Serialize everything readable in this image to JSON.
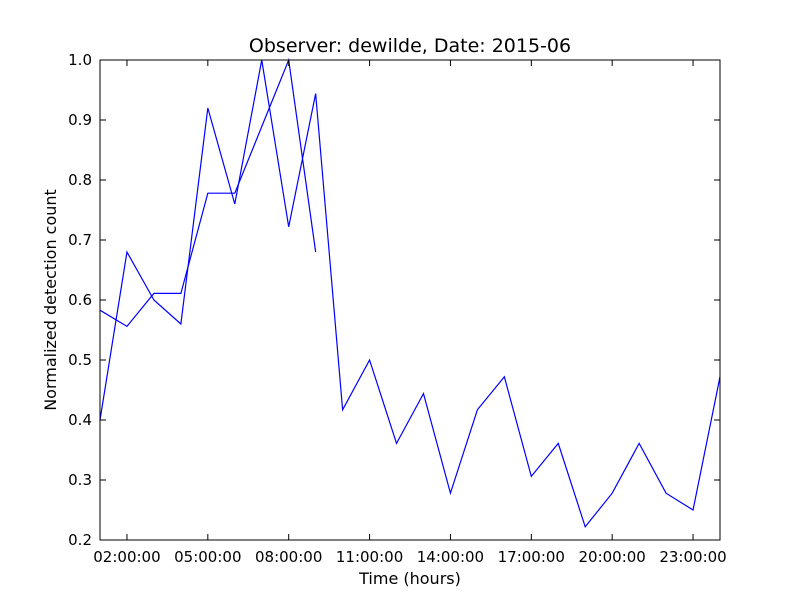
{
  "chart_data": {
    "type": "line",
    "title": "Observer: dewilde, Date: 2015-06",
    "xlabel": "Time (hours)",
    "ylabel": "Normalized detection count",
    "xlim": [
      "01:00:00",
      "24:00:00"
    ],
    "ylim": [
      0.2,
      1.0
    ],
    "x_tick_labels": [
      "02:00:00",
      "05:00:00",
      "08:00:00",
      "11:00:00",
      "14:00:00",
      "17:00:00",
      "20:00:00",
      "23:00:00"
    ],
    "y_tick_labels": [
      "0.2",
      "0.3",
      "0.4",
      "0.5",
      "0.6",
      "0.7",
      "0.8",
      "0.9",
      "1.0"
    ],
    "grid": false,
    "legend": "none",
    "color": "#0000ff",
    "series": [
      {
        "x": [
          "01:00:00",
          "02:00:00",
          "03:00:00",
          "04:00:00",
          "05:00:00",
          "06:00:00",
          "07:00:00",
          "08:00:00",
          "09:00:00"
        ],
        "y": [
          0.583,
          0.556,
          0.611,
          0.611,
          0.778,
          0.778,
          0.889,
          1.0,
          0.68
        ]
      },
      {
        "x": [
          "01:00:00",
          "02:00:00",
          "03:00:00",
          "04:00:00",
          "05:00:00",
          "06:00:00",
          "07:00:00",
          "08:00:00",
          "09:00:00",
          "10:00:00",
          "11:00:00",
          "12:00:00",
          "13:00:00",
          "14:00:00",
          "15:00:00",
          "16:00:00",
          "17:00:00",
          "18:00:00",
          "19:00:00",
          "20:00:00",
          "21:00:00",
          "22:00:00",
          "23:00:00",
          "24:00:00"
        ],
        "y": [
          0.4,
          0.68,
          0.6,
          0.56,
          0.92,
          0.76,
          1.0,
          0.722,
          0.944,
          0.417,
          0.5,
          0.361,
          0.444,
          0.278,
          0.417,
          0.472,
          0.306,
          0.361,
          0.222,
          0.278,
          0.361,
          0.278,
          0.25,
          0.472
        ]
      }
    ]
  }
}
